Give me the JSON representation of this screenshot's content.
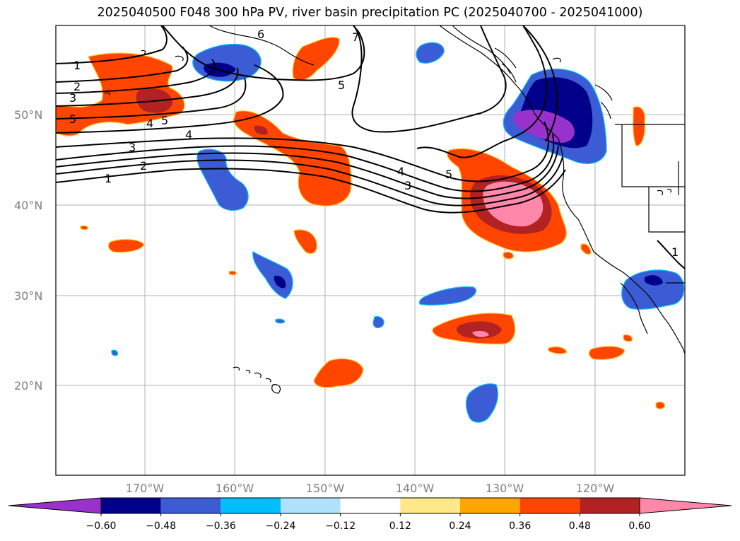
{
  "title": "2025040500 F048 300 hPa PV, river basin precipitation PC (2025040700 - 2025041000)",
  "lat_labels": [
    "50°N",
    "40°N",
    "30°N",
    "20°N"
  ],
  "lon_labels": [
    "170°W",
    "160°W",
    "150°W",
    "140°W",
    "130°W",
    "120°W"
  ],
  "pv_contour_labels": [
    "1",
    "2",
    "3",
    "4",
    "5",
    "5",
    "4",
    "3",
    "2",
    "1",
    "6",
    "5",
    "7",
    "4",
    "3",
    "5",
    "1"
  ],
  "colorbar": {
    "ticks": [
      "−0.60",
      "−0.48",
      "−0.36",
      "−0.24",
      "−0.12",
      "0.12",
      "0.24",
      "0.36",
      "0.48",
      "0.60"
    ],
    "colors": [
      "#9932cc",
      "#00008b",
      "#3b5cd4",
      "#00bfff",
      "#b0e2ff",
      "#ffffff",
      "#ffe88a",
      "#ffa500",
      "#ff4500",
      "#b22222",
      "#ff88aa"
    ],
    "under_color": "#9932cc",
    "over_color": "#ff88aa"
  }
}
